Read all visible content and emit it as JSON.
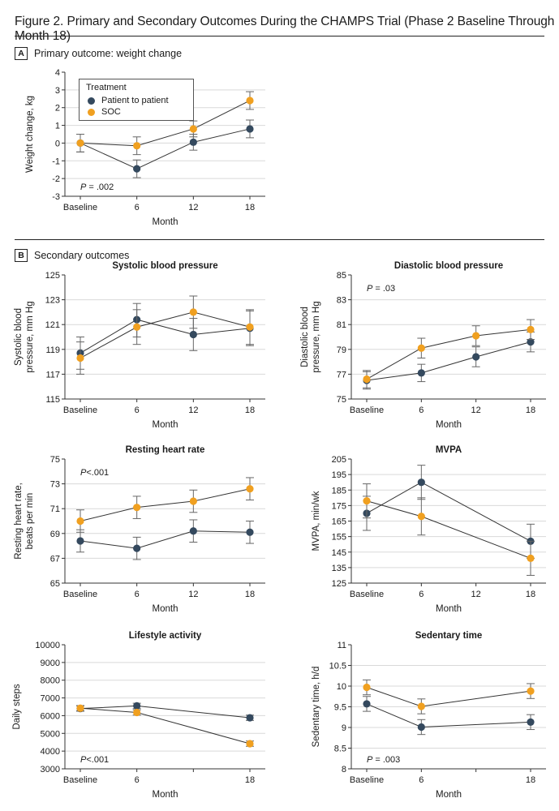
{
  "figure": {
    "title": "Figure 2. Primary and Secondary Outcomes During the CHAMPS Trial (Phase 2 Baseline Through Month 18)",
    "panel_a": {
      "letter": "A",
      "label": "Primary outcome: weight change"
    },
    "panel_b": {
      "letter": "B",
      "label": "Secondary outcomes"
    }
  },
  "legend": {
    "title": "Treatment",
    "items": [
      {
        "name": "Patient to patient",
        "color": "#34495e"
      },
      {
        "name": "SOC",
        "color": "#f0a020"
      }
    ]
  },
  "colors": {
    "ptp": "#34495e",
    "soc": "#f0a020",
    "grid": "#d9d9d9",
    "line": "#333333"
  },
  "chart_data": [
    {
      "id": "weight",
      "type": "line",
      "title": "",
      "xlabel": "Month",
      "ylabel": [
        "Weight change, kg"
      ],
      "categories": [
        "Baseline",
        "6",
        "12",
        "18"
      ],
      "x": [
        0,
        6,
        12,
        18
      ],
      "ylim": [
        -3,
        4
      ],
      "yticks": [
        "4",
        "3",
        "2",
        "1",
        "0",
        "-1",
        "-2",
        "-3"
      ],
      "ytick_values": [
        4,
        3,
        2,
        1,
        0,
        -1,
        -2,
        -3
      ],
      "series": [
        {
          "name": "Patient to patient",
          "x": [
            0,
            6,
            12,
            18
          ],
          "values": [
            0,
            -1.45,
            0.05,
            0.8
          ],
          "lo": [
            -0.5,
            -1.95,
            -0.4,
            0.3
          ],
          "hi": [
            0.5,
            -0.95,
            0.5,
            1.3
          ]
        },
        {
          "name": "SOC",
          "x": [
            0,
            6,
            12,
            18
          ],
          "values": [
            0,
            -0.15,
            0.8,
            2.4
          ],
          "lo": [
            -0.5,
            -0.65,
            0.35,
            1.9
          ],
          "hi": [
            0.5,
            0.35,
            1.25,
            2.9
          ]
        }
      ],
      "annotation": {
        "p": "P",
        "rest": " = .002",
        "pos": "bottom-left"
      }
    },
    {
      "id": "sbp",
      "type": "line",
      "title": "Systolic blood pressure",
      "xlabel": "Month",
      "ylabel": [
        "Systolic blood",
        "pressure, mm Hg"
      ],
      "categories": [
        "Baseline",
        "6",
        "12",
        "18"
      ],
      "x": [
        0,
        6,
        12,
        18
      ],
      "ylim": [
        115,
        125
      ],
      "yticks": [
        "125",
        "123",
        "121",
        "119",
        "117",
        "115"
      ],
      "ytick_values": [
        125,
        123,
        121,
        119,
        117,
        115
      ],
      "series": [
        {
          "name": "Patient to patient",
          "x": [
            0,
            6,
            12,
            18
          ],
          "values": [
            118.7,
            121.4,
            120.2,
            120.7
          ],
          "lo": [
            117.4,
            120.0,
            118.9,
            119.3
          ],
          "hi": [
            120.0,
            122.7,
            121.5,
            122.1
          ]
        },
        {
          "name": "SOC",
          "x": [
            0,
            6,
            12,
            18
          ],
          "values": [
            118.3,
            120.8,
            122.0,
            120.8
          ],
          "lo": [
            117.0,
            119.4,
            120.7,
            119.4
          ],
          "hi": [
            119.6,
            122.2,
            123.3,
            122.2
          ]
        }
      ],
      "annotation": null
    },
    {
      "id": "dbp",
      "type": "line",
      "title": "Diastolic blood pressure",
      "xlabel": "Month",
      "ylabel": [
        "Diastolic blood",
        "pressure, mm Hg"
      ],
      "categories": [
        "Baseline",
        "6",
        "12",
        "18"
      ],
      "x": [
        0,
        6,
        12,
        18
      ],
      "ylim": [
        75,
        85
      ],
      "yticks": [
        "85",
        "83",
        "81",
        "79",
        "77",
        "75"
      ],
      "ytick_values": [
        85,
        83,
        81,
        79,
        77,
        75
      ],
      "series": [
        {
          "name": "Patient to patient",
          "x": [
            0,
            6,
            12,
            18
          ],
          "values": [
            76.5,
            77.1,
            78.4,
            79.6
          ],
          "lo": [
            75.8,
            76.4,
            77.6,
            78.8
          ],
          "hi": [
            77.2,
            77.8,
            79.2,
            80.4
          ]
        },
        {
          "name": "SOC",
          "x": [
            0,
            6,
            12,
            18
          ],
          "values": [
            76.6,
            79.1,
            80.1,
            80.6
          ],
          "lo": [
            75.9,
            78.3,
            79.3,
            79.8
          ],
          "hi": [
            77.3,
            79.9,
            80.9,
            81.4
          ]
        }
      ],
      "annotation": {
        "p": "P",
        "rest": " = .03",
        "pos": "top-left"
      }
    },
    {
      "id": "rhr",
      "type": "line",
      "title": "Resting heart rate",
      "xlabel": "Month",
      "ylabel": [
        "Resting heart rate,",
        "beats per min"
      ],
      "categories": [
        "Baseline",
        "6",
        "12",
        "18"
      ],
      "x": [
        0,
        6,
        12,
        18
      ],
      "ylim": [
        65,
        75
      ],
      "yticks": [
        "75",
        "73",
        "71",
        "69",
        "67",
        "65"
      ],
      "ytick_values": [
        75,
        73,
        71,
        69,
        67,
        65
      ],
      "series": [
        {
          "name": "Patient to patient",
          "x": [
            0,
            6,
            12,
            18
          ],
          "values": [
            68.4,
            67.8,
            69.2,
            69.1
          ],
          "lo": [
            67.5,
            66.9,
            68.3,
            68.2
          ],
          "hi": [
            69.3,
            68.7,
            70.1,
            70.0
          ]
        },
        {
          "name": "SOC",
          "x": [
            0,
            6,
            12,
            18
          ],
          "values": [
            70.0,
            71.1,
            71.6,
            72.6
          ],
          "lo": [
            69.1,
            70.2,
            70.7,
            71.7
          ],
          "hi": [
            70.9,
            72.0,
            72.5,
            73.5
          ]
        }
      ],
      "annotation": {
        "p": "P",
        "rest": "<.001",
        "pos": "top-left"
      }
    },
    {
      "id": "mvpa",
      "type": "line",
      "title": "MVPA",
      "xlabel": "Month",
      "ylabel": [
        "MVPA, min/wk"
      ],
      "categories": [
        "Baseline",
        "6",
        "12",
        "18"
      ],
      "x": [
        0,
        6,
        12,
        18
      ],
      "ylim": [
        125,
        205
      ],
      "yticks": [
        "205",
        "195",
        "185",
        "175",
        "165",
        "155",
        "145",
        "135",
        "125"
      ],
      "ytick_values": [
        205,
        195,
        185,
        175,
        165,
        155,
        145,
        135,
        125
      ],
      "series": [
        {
          "name": "Patient to patient",
          "x": [
            0,
            6,
            18
          ],
          "values": [
            170,
            190,
            152
          ],
          "lo": [
            159,
            179,
            141
          ],
          "hi": [
            181,
            201,
            163
          ]
        },
        {
          "name": "SOC",
          "x": [
            0,
            6,
            18
          ],
          "values": [
            178,
            168,
            141
          ],
          "lo": [
            167,
            156,
            130
          ],
          "hi": [
            189,
            180,
            152
          ]
        }
      ],
      "annotation": null
    },
    {
      "id": "steps",
      "type": "line",
      "title": "Lifestyle activity",
      "xlabel": "Month",
      "ylabel": [
        "Daily steps"
      ],
      "categories": [
        "Baseline",
        "6",
        "18"
      ],
      "x": [
        0,
        6,
        18
      ],
      "ylim": [
        3000,
        10000
      ],
      "yticks": [
        "10000",
        "9000",
        "8000",
        "7000",
        "6000",
        "5000",
        "4000",
        "3000"
      ],
      "ytick_values": [
        10000,
        9000,
        8000,
        7000,
        6000,
        5000,
        4000,
        3000
      ],
      "series": [
        {
          "name": "Patient to patient",
          "x": [
            0,
            6,
            18
          ],
          "values": [
            6400,
            6550,
            5880
          ],
          "lo": [
            6250,
            6400,
            5730
          ],
          "hi": [
            6550,
            6700,
            6030
          ]
        },
        {
          "name": "SOC",
          "x": [
            0,
            6,
            18
          ],
          "values": [
            6420,
            6180,
            4420
          ],
          "lo": [
            6270,
            6030,
            4270
          ],
          "hi": [
            6570,
            6330,
            4570
          ]
        }
      ],
      "annotation": {
        "p": "P",
        "rest": "<.001",
        "pos": "bottom-left"
      }
    },
    {
      "id": "sedentary",
      "type": "line",
      "title": "Sedentary time",
      "xlabel": "Month",
      "ylabel": [
        "Sedentary time, h/d"
      ],
      "categories": [
        "Baseline",
        "6",
        "18"
      ],
      "x": [
        0,
        6,
        18
      ],
      "ylim": [
        8,
        11
      ],
      "yticks": [
        "11",
        "10.5",
        "10",
        "9.5",
        "9",
        "8.5",
        "8"
      ],
      "ytick_values": [
        11,
        10.5,
        10,
        9.5,
        9,
        8.5,
        8
      ],
      "series": [
        {
          "name": "Patient to patient",
          "x": [
            0,
            6,
            18
          ],
          "values": [
            9.57,
            9.01,
            9.13
          ],
          "lo": [
            9.39,
            8.83,
            8.95
          ],
          "hi": [
            9.75,
            9.19,
            9.31
          ]
        },
        {
          "name": "SOC",
          "x": [
            0,
            6,
            18
          ],
          "values": [
            9.97,
            9.51,
            9.88
          ],
          "lo": [
            9.79,
            9.33,
            9.7
          ],
          "hi": [
            10.15,
            9.69,
            10.06
          ]
        }
      ],
      "annotation": {
        "p": "P",
        "rest": " = .003",
        "pos": "bottom-left"
      }
    }
  ]
}
